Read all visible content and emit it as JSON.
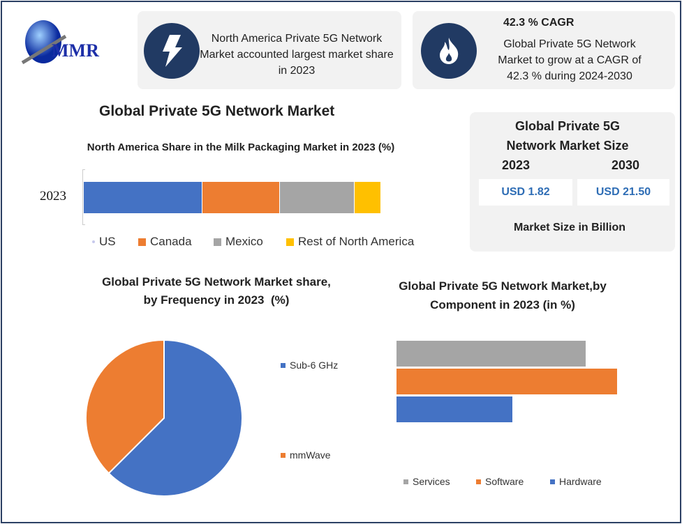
{
  "logo": {
    "text": "MMR"
  },
  "card1": {
    "icon": "lightning-icon",
    "text": "North America Private 5G Network Market accounted largest market share in 2023"
  },
  "card2": {
    "icon": "flame-icon",
    "heading": "42.3 % CAGR",
    "text": "Global Private 5G Network Market to grow at a CAGR of 42.3 % during 2024-2030"
  },
  "main_title": "Global Private 5G Network Market",
  "size_box": {
    "title": "Global Private 5G Network Market Size",
    "year1": "2023",
    "year2": "2030",
    "value1": "USD 1.82",
    "value2": "USD 21.50",
    "footer": "Market Size in Billion"
  },
  "colors": {
    "blue": "#4472c4",
    "orange": "#ed7d31",
    "gray": "#a5a5a5",
    "yellow": "#ffc000",
    "navy": "#213a63"
  },
  "chart_data": [
    {
      "type": "bar",
      "orientation": "horizontal",
      "stacked": true,
      "title": "North America Share in the Milk Packaging Market in 2023 (%)",
      "categories": [
        "2023"
      ],
      "series": [
        {
          "name": "US",
          "values": [
            40
          ]
        },
        {
          "name": "Canada",
          "values": [
            26
          ]
        },
        {
          "name": "Mexico",
          "values": [
            25
          ]
        },
        {
          "name": "Rest of North America",
          "values": [
            9
          ]
        }
      ],
      "legend": "bottom"
    },
    {
      "type": "pie",
      "title": "Global Private 5G Network Market share, by Frequency in 2023  (%)",
      "labels": [
        "Sub-6 GHz",
        "mmWave"
      ],
      "values": [
        62.5,
        37.5
      ],
      "legend": "right"
    },
    {
      "type": "bar",
      "orientation": "horizontal",
      "title": "Global Private 5G Network Market,by Component in 2023 (in %)",
      "series": [
        {
          "name": "Services",
          "values": [
            36
          ]
        },
        {
          "name": "Software",
          "values": [
            42
          ]
        },
        {
          "name": "Hardware",
          "values": [
            22
          ]
        }
      ],
      "legend": "bottom"
    }
  ]
}
